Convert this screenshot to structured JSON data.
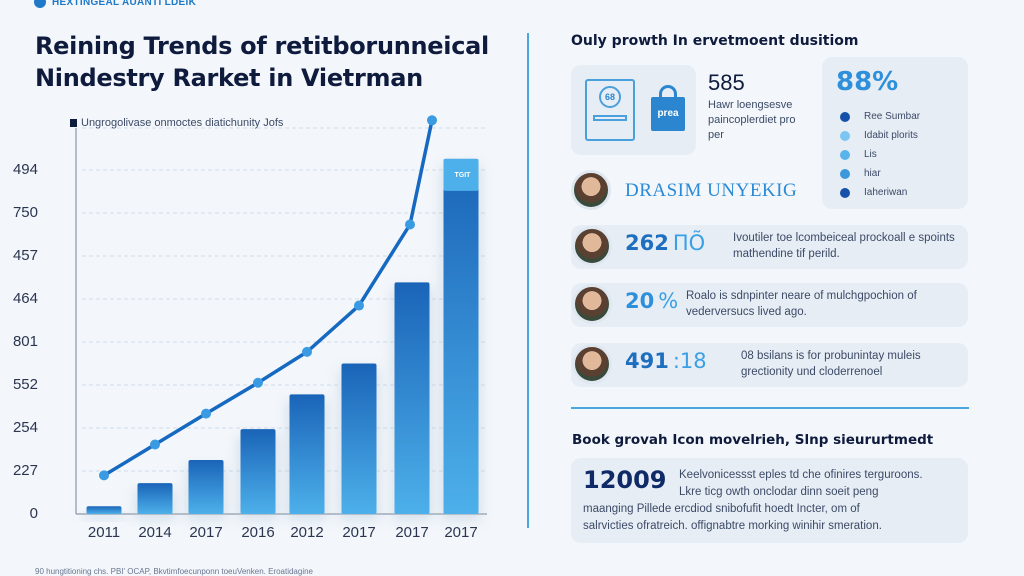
{
  "brand": {
    "label": "HEXTINGEAL AUANTI LDEIK"
  },
  "title": {
    "line1": "Reining Trends of retitborunneical",
    "line2": "Nindestry Rarket in Vietrman"
  },
  "chart": {
    "legend_note": "Ungrogolivase onmoctes diatichunity Jofs",
    "bar_tag": "TGIT",
    "footnote": "90 hungtitioning chs. PBI' OCAP, Bkvtimfoecunponn toeuVenken. Eroatidagine"
  },
  "chart_data": {
    "type": "bar",
    "title": "Reining Trends of retitborunneical Nindestry Rarket in Vietrman",
    "subtitle": "Ungrogolivase onmoctes diatichunity Jofs",
    "xlabel": "",
    "ylabel": "",
    "categories": [
      "2011",
      "2014",
      "2017",
      "2016",
      "2012",
      "2017",
      "2017",
      "2017"
    ],
    "y_tick_labels": [
      "0",
      "227",
      "254",
      "552",
      "801",
      "464",
      "457",
      "750",
      "494"
    ],
    "grid": true,
    "series": [
      {
        "name": "bars",
        "type": "bar",
        "values_pct_of_axis": [
          2,
          8,
          14,
          22,
          31,
          39,
          60,
          92
        ]
      },
      {
        "name": "trend line",
        "type": "line",
        "values_pct_of_axis": [
          10,
          18,
          26,
          34,
          42,
          54,
          75,
          102
        ]
      }
    ],
    "legend_position": "top-left"
  },
  "right": {
    "heading": "Ouly prowth In ervetmoent dusitiom",
    "stat": {
      "value": "585",
      "description": "Hawr loengsesve paincoplerdiet pro per",
      "bag_label": "prea",
      "cert_label": "68"
    },
    "percent_card": {
      "value": "88%",
      "items": [
        {
          "label": "Ree Sumbar",
          "color": "#1551a8"
        },
        {
          "label": "Idabit plorits",
          "color": "#7cc6f2"
        },
        {
          "label": "Lis",
          "color": "#5ab4ec"
        },
        {
          "label": "hiar",
          "color": "#3c98dc"
        },
        {
          "label": "Iaheriwan",
          "color": "#1551a8"
        }
      ]
    },
    "person_name": "DRASIM UNYEKIG",
    "rows": [
      {
        "num": "262",
        "unit": "ПÕ",
        "desc": "Ivoutiler toe lcombeiceal prockoall e spoints mathendine tif perild."
      },
      {
        "num": "20",
        "unit": "%",
        "desc": "Roalo is sdnpinter neare of mulchgpochion of vederversucs lived ago."
      },
      {
        "num": "491",
        "unit": ":18",
        "desc": "08 bsilans is for probunintay muleis grectionity und cloderrenoel"
      }
    ],
    "heading2": "Book grovah Icon movelrieh, Slnp sieururtmedt",
    "bottom": {
      "num": "12009",
      "desc_line1": "Keelvonicessst eples td che ofinires terguroons.",
      "desc_line2": "Lkre ticg owth onclodar dinn soeit peng",
      "desc_line3": "maanging Pillede ercdiod snibofufit hoedt Incter, om of",
      "desc_line4": "salrvicties ofratreich. offignabtre morking winihir smeration."
    }
  }
}
